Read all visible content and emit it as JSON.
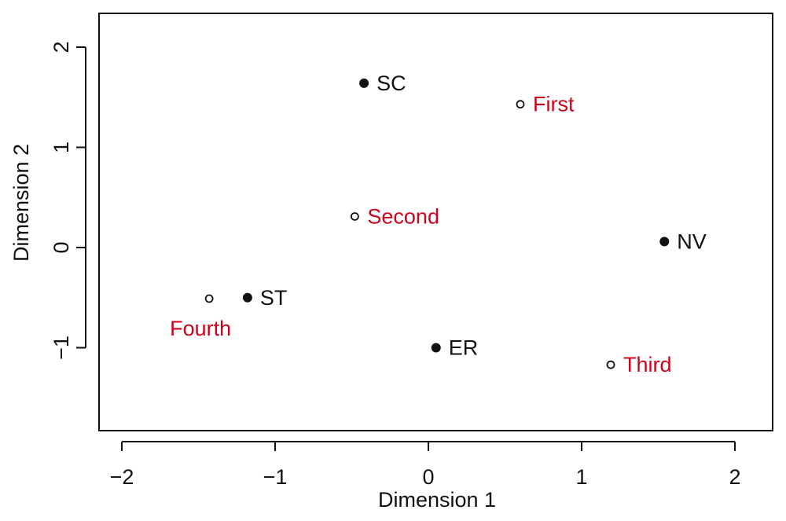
{
  "chart_data": {
    "type": "scatter",
    "title": "",
    "xlabel": "Dimension 1",
    "ylabel": "Dimension 2",
    "xlim": [
      -2.15,
      2.25
    ],
    "ylim": [
      -1.85,
      2.25
    ],
    "xticks": [
      -2,
      -1,
      0,
      1,
      2
    ],
    "xtick_labels": [
      "−2",
      "−1",
      "0",
      "1",
      "2"
    ],
    "yticks": [
      -1,
      0,
      1,
      2
    ],
    "ytick_labels": [
      "−1",
      "0",
      "1",
      "2"
    ],
    "grid": false,
    "series": [
      {
        "marker": "filled-circle",
        "color": "#111111",
        "points": [
          {
            "label": "SC",
            "x": -0.42,
            "y": 1.64
          },
          {
            "label": "NV",
            "x": 1.54,
            "y": 0.06
          },
          {
            "label": "ST",
            "x": -1.18,
            "y": -0.5
          },
          {
            "label": "ER",
            "x": 0.05,
            "y": -1.0
          }
        ]
      },
      {
        "marker": "open-circle",
        "color": "#d0021b",
        "points": [
          {
            "label": "First",
            "x": 0.6,
            "y": 1.43
          },
          {
            "label": "Second",
            "x": -0.48,
            "y": 0.31
          },
          {
            "label": "Fourth",
            "x": -1.43,
            "y": -0.51
          },
          {
            "label": "Third",
            "x": 1.19,
            "y": -1.17
          }
        ]
      }
    ]
  }
}
